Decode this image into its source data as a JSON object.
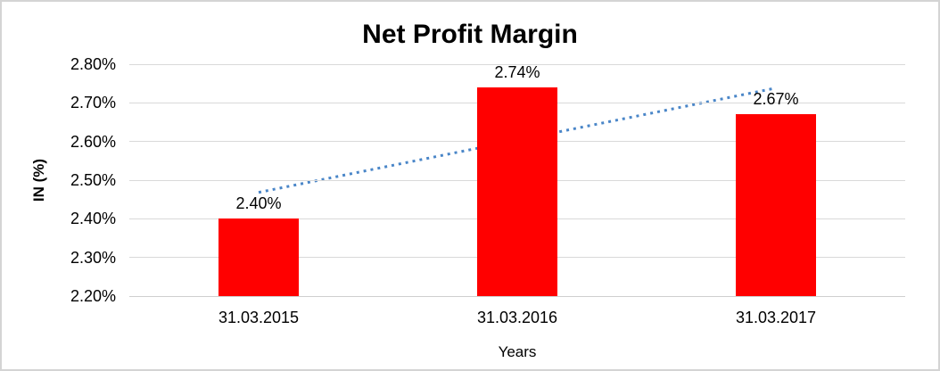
{
  "chart_data": {
    "type": "bar",
    "title": "Net Profit Margin",
    "categories": [
      "31.03.2015",
      "31.03.2016",
      "31.03.2017"
    ],
    "values": [
      2.4,
      2.74,
      2.67
    ],
    "data_labels": [
      "2.40%",
      "2.74%",
      "2.67%"
    ],
    "xlabel": "Years",
    "ylabel": "IN (%)",
    "ylim": [
      2.2,
      2.8
    ],
    "ytick_values": [
      2.8,
      2.7,
      2.6,
      2.5,
      2.4,
      2.3,
      2.2
    ],
    "ytick_labels": [
      "2.80%",
      "2.70%",
      "2.60%",
      "2.50%",
      "2.40%",
      "2.30%",
      "2.20%"
    ],
    "grid": "horizontal",
    "legend_position": "none",
    "bar_color": "#ff0000",
    "trendline": {
      "type": "linear",
      "style": "dotted",
      "color": "#4a86c8"
    },
    "gridline_color": "#d9d9d9",
    "text_color": "#000000",
    "border_color": "#d4d4d4"
  }
}
